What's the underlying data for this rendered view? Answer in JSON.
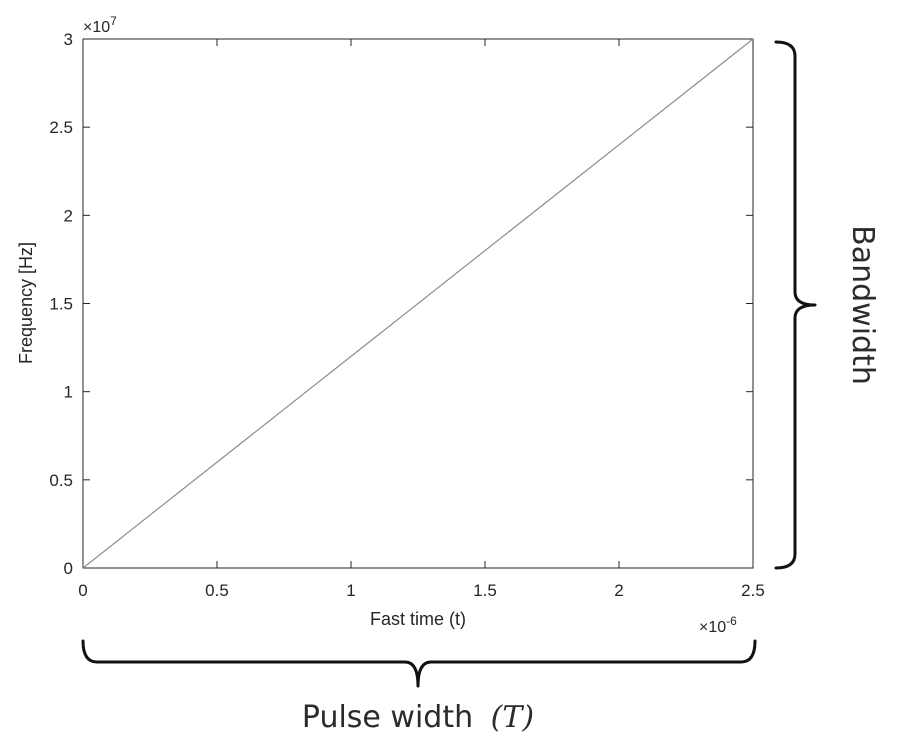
{
  "chart_data": {
    "type": "line",
    "title": "",
    "xlabel": "Fast time (t)",
    "ylabel": "Frequency [Hz]",
    "x_multiplier": {
      "base": "×10",
      "exponent": "-6"
    },
    "y_multiplier": {
      "base": "×10",
      "exponent": "7"
    },
    "xlim": [
      0,
      2.5
    ],
    "ylim": [
      0,
      3
    ],
    "xticks": [
      0,
      0.5,
      1,
      1.5,
      2,
      2.5
    ],
    "yticks": [
      0,
      0.5,
      1,
      1.5,
      2,
      2.5,
      3
    ],
    "xtick_labels": [
      "0",
      "0.5",
      "1",
      "1.5",
      "2",
      "2.5"
    ],
    "ytick_labels": [
      "0",
      "0.5",
      "1",
      "1.5",
      "2",
      "2.5",
      "3"
    ],
    "grid": false,
    "series": [
      {
        "x": [
          0,
          2.5
        ],
        "y": [
          0,
          3
        ],
        "color": "#8c8c8c"
      }
    ]
  },
  "annotations": {
    "bandwidth_label": "Bandwidth",
    "pulse_width_label": "Pulse width",
    "pulse_width_symbol": "(T)"
  },
  "colors": {
    "axes": "#262626",
    "series_line": "#8c8c8c",
    "brace": "#111111"
  }
}
